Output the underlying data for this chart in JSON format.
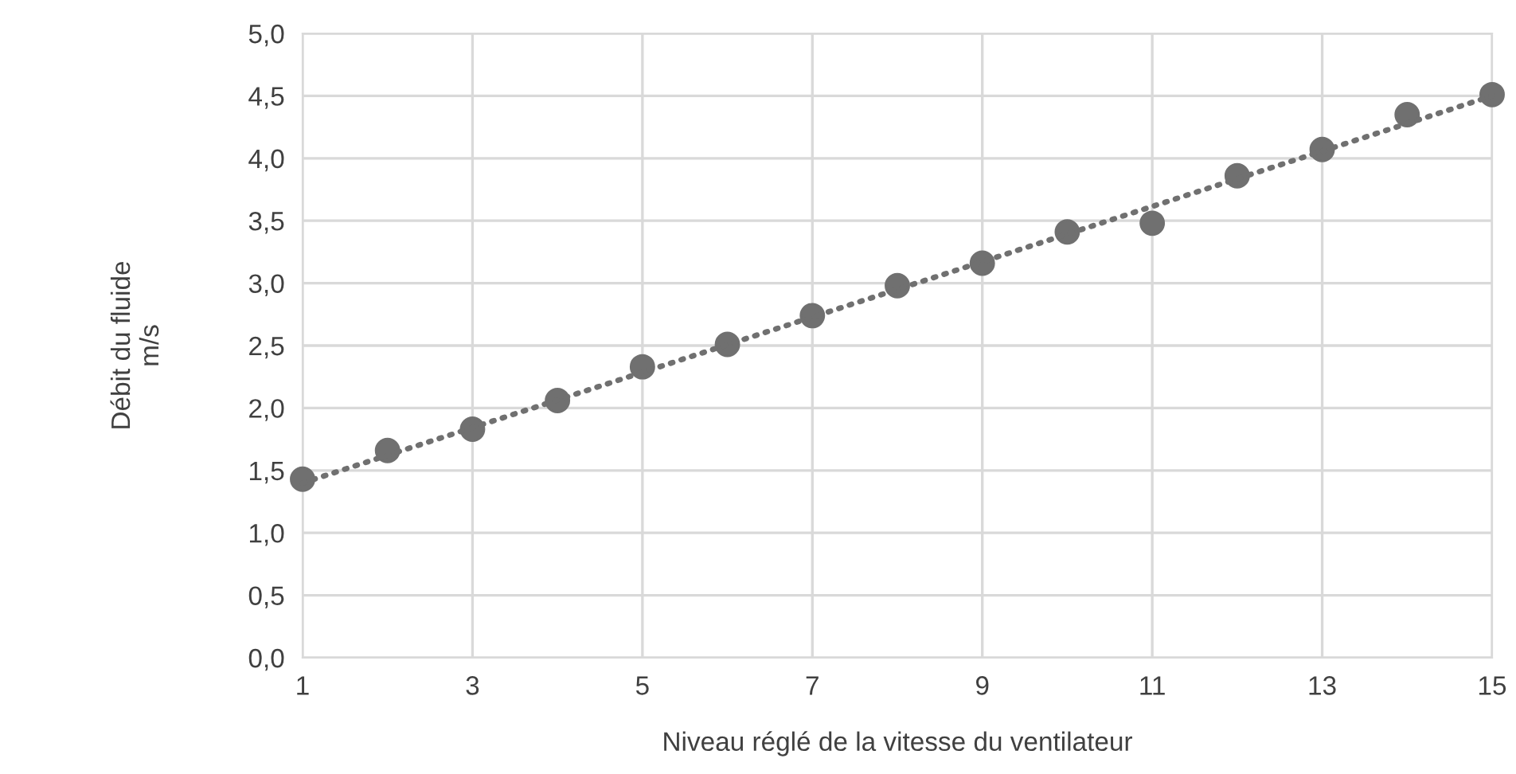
{
  "chart_data": {
    "type": "scatter",
    "xlabel": "Niveau réglé de la vitesse du ventilateur",
    "ylabel": "Débit du fluide\nm/s",
    "x": [
      1,
      2,
      3,
      4,
      5,
      6,
      7,
      8,
      9,
      10,
      11,
      12,
      13,
      14,
      15
    ],
    "series": [
      {
        "color": "#707070",
        "marker": "circle",
        "values": [
          1.43,
          1.66,
          1.83,
          2.06,
          2.33,
          2.51,
          2.74,
          2.98,
          3.16,
          3.41,
          3.48,
          3.86,
          4.07,
          4.35,
          4.51
        ]
      },
      {
        "type": "line",
        "color": "#707070",
        "line_style": "dotted",
        "x": [
          1,
          15
        ],
        "values": [
          1.4,
          4.5
        ]
      }
    ],
    "xlim": [
      1,
      15
    ],
    "xticks": [
      1,
      3,
      5,
      7,
      9,
      11,
      13,
      15
    ],
    "ylim": [
      0,
      5
    ],
    "yticks": [
      {
        "value": 0,
        "label": "0,0"
      },
      {
        "value": 0.5,
        "label": "0,5"
      },
      {
        "value": 1,
        "label": "1,0"
      },
      {
        "value": 1.5,
        "label": "1,5"
      },
      {
        "value": 2,
        "label": "2,0"
      },
      {
        "value": 2.5,
        "label": "2,5"
      },
      {
        "value": 3,
        "label": "3,0"
      },
      {
        "value": 3.5,
        "label": "3,5"
      },
      {
        "value": 4,
        "label": "4,0"
      },
      {
        "value": 4.5,
        "label": "4,5"
      },
      {
        "value": 5,
        "label": "5,0"
      }
    ],
    "grid": true,
    "legend": false
  }
}
